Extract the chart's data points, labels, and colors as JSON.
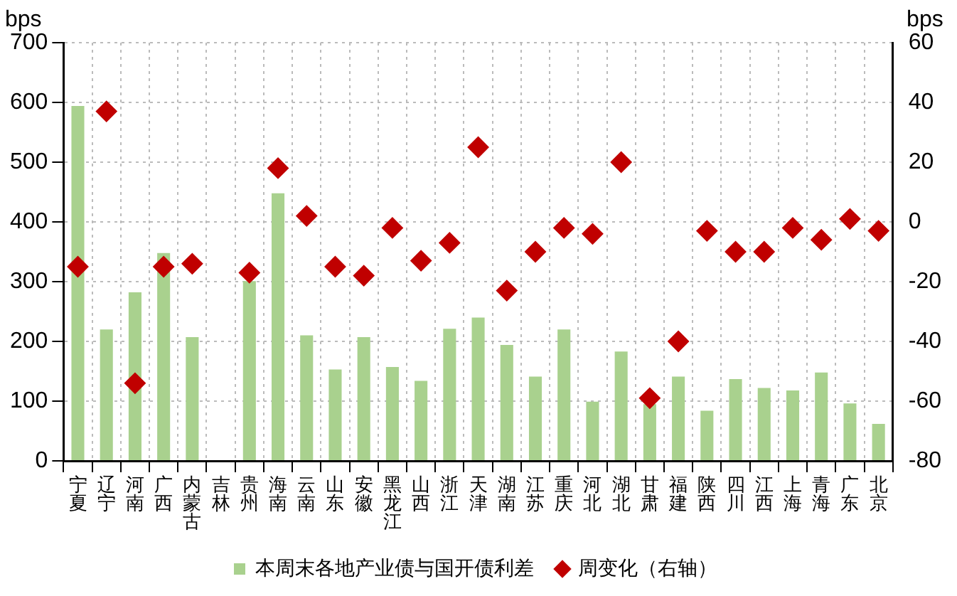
{
  "chart_data": {
    "type": "bar",
    "categories": [
      "宁夏",
      "辽宁",
      "河南",
      "广西",
      "内蒙古",
      "吉林",
      "贵州",
      "海南",
      "云南",
      "山东",
      "安徽",
      "黑龙江",
      "山西",
      "浙江",
      "天津",
      "湖南",
      "江苏",
      "重庆",
      "河北",
      "湖北",
      "甘肃",
      "福建",
      "陕西",
      "四川",
      "江西",
      "上海",
      "青海",
      "广东",
      "北京"
    ],
    "series": [
      {
        "name": "本周末各地产业债与国开债利差",
        "color": "#a9d18e",
        "values": [
          594,
          220,
          282,
          348,
          207,
          null,
          301,
          448,
          210,
          153,
          207,
          157,
          134,
          221,
          240,
          194,
          141,
          220,
          99,
          183,
          95,
          141,
          84,
          137,
          122,
          118,
          148,
          96,
          62
        ]
      },
      {
        "name": "周变化（右轴）",
        "type": "scatter",
        "axis": "y2",
        "color": "#c00000",
        "values": [
          -15,
          37,
          -54,
          -15,
          -14,
          null,
          -17,
          18,
          2,
          -15,
          -18,
          -2,
          -13,
          -7,
          25,
          -23,
          -10,
          -2,
          -4,
          20,
          -59,
          -40,
          -3,
          -10,
          -10,
          -2,
          -6,
          1,
          -3
        ]
      }
    ],
    "ylabel": "bps",
    "y2label": "bps",
    "ylim": [
      0,
      700
    ],
    "yticks": [
      0,
      100,
      200,
      300,
      400,
      500,
      600,
      700
    ],
    "y2lim": [
      -80,
      60
    ],
    "y2ticks": [
      -80,
      -60,
      -40,
      -20,
      0,
      20,
      40,
      60
    ],
    "grid": true,
    "legend": "bottom",
    "marker": "diamond"
  }
}
